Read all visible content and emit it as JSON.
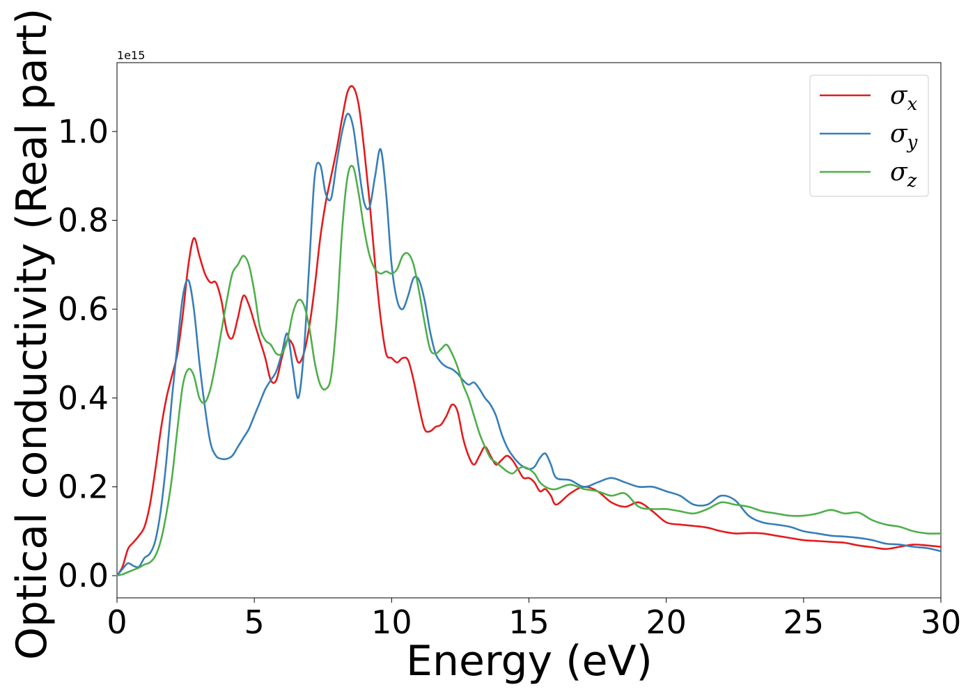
{
  "chart_data": {
    "type": "line",
    "xlabel": "Energy (eV)",
    "ylabel": "Optical conductivity (Real part)",
    "y_offset_label": "1e15",
    "xlim": [
      0,
      30
    ],
    "ylim": [
      -0.05,
      1.155
    ],
    "x_ticks": [
      0,
      5,
      10,
      15,
      20,
      25,
      30
    ],
    "y_ticks": [
      0.0,
      0.2,
      0.4,
      0.6,
      0.8,
      1.0
    ],
    "x_tick_labels": [
      "0",
      "5",
      "10",
      "15",
      "20",
      "25",
      "30"
    ],
    "y_tick_labels": [
      "0.0",
      "0.2",
      "0.4",
      "0.6",
      "0.8",
      "1.0"
    ],
    "grid": false,
    "legend_position": "top-right",
    "series": [
      {
        "name": "σx",
        "label_base": "σ",
        "label_sub": "x",
        "color": "#e41a1c",
        "x": [
          0,
          0.2,
          0.4,
          0.6,
          0.8,
          1.0,
          1.2,
          1.4,
          1.6,
          1.8,
          2.0,
          2.2,
          2.4,
          2.6,
          2.8,
          3.0,
          3.2,
          3.4,
          3.6,
          3.8,
          4.0,
          4.2,
          4.4,
          4.6,
          4.8,
          5.0,
          5.2,
          5.4,
          5.6,
          5.8,
          6.0,
          6.2,
          6.4,
          6.6,
          6.8,
          7.0,
          7.2,
          7.4,
          7.6,
          7.8,
          8.0,
          8.2,
          8.4,
          8.6,
          8.8,
          9.0,
          9.2,
          9.4,
          9.6,
          9.8,
          10.0,
          10.2,
          10.4,
          10.6,
          10.8,
          11.0,
          11.2,
          11.4,
          11.6,
          11.8,
          12.0,
          12.2,
          12.4,
          12.6,
          12.8,
          13.0,
          13.2,
          13.4,
          13.6,
          13.8,
          14.0,
          14.2,
          14.4,
          14.6,
          14.8,
          15.0,
          15.2,
          15.4,
          15.6,
          15.8,
          16.0,
          16.5,
          17.0,
          17.5,
          18.0,
          18.5,
          19.0,
          19.5,
          20.0,
          20.5,
          21.0,
          21.5,
          22.0,
          22.5,
          23.0,
          23.5,
          24.0,
          24.5,
          25.0,
          25.5,
          26.0,
          26.5,
          27.0,
          27.5,
          28.0,
          28.5,
          29.0,
          29.5,
          30.0
        ],
        "y": [
          0.0,
          0.02,
          0.06,
          0.075,
          0.09,
          0.11,
          0.16,
          0.24,
          0.33,
          0.4,
          0.45,
          0.5,
          0.59,
          0.7,
          0.76,
          0.72,
          0.68,
          0.66,
          0.66,
          0.62,
          0.55,
          0.535,
          0.58,
          0.63,
          0.61,
          0.57,
          0.53,
          0.49,
          0.44,
          0.44,
          0.49,
          0.53,
          0.52,
          0.48,
          0.5,
          0.56,
          0.65,
          0.76,
          0.84,
          0.9,
          0.96,
          1.03,
          1.09,
          1.1,
          1.06,
          0.96,
          0.84,
          0.7,
          0.58,
          0.5,
          0.49,
          0.48,
          0.49,
          0.485,
          0.44,
          0.38,
          0.33,
          0.325,
          0.335,
          0.34,
          0.36,
          0.385,
          0.37,
          0.31,
          0.27,
          0.25,
          0.27,
          0.29,
          0.27,
          0.25,
          0.26,
          0.27,
          0.26,
          0.24,
          0.22,
          0.22,
          0.21,
          0.19,
          0.195,
          0.18,
          0.16,
          0.185,
          0.2,
          0.19,
          0.165,
          0.155,
          0.165,
          0.145,
          0.12,
          0.115,
          0.112,
          0.108,
          0.1,
          0.095,
          0.096,
          0.095,
          0.09,
          0.085,
          0.08,
          0.078,
          0.076,
          0.074,
          0.068,
          0.064,
          0.06,
          0.065,
          0.07,
          0.068,
          0.065
        ],
        "x_note": "",
        "y_note": ""
      },
      {
        "name": "σy",
        "label_base": "σ",
        "label_sub": "y",
        "color": "#377eb8",
        "x": [
          0,
          0.2,
          0.4,
          0.6,
          0.8,
          1.0,
          1.2,
          1.4,
          1.6,
          1.8,
          2.0,
          2.2,
          2.4,
          2.6,
          2.8,
          3.0,
          3.2,
          3.4,
          3.6,
          3.8,
          4.0,
          4.2,
          4.4,
          4.6,
          4.8,
          5.0,
          5.2,
          5.4,
          5.6,
          5.8,
          6.0,
          6.2,
          6.4,
          6.6,
          6.8,
          7.0,
          7.2,
          7.4,
          7.6,
          7.8,
          8.0,
          8.2,
          8.4,
          8.6,
          8.8,
          9.0,
          9.2,
          9.4,
          9.6,
          9.8,
          10.0,
          10.2,
          10.4,
          10.6,
          10.8,
          11.0,
          11.2,
          11.4,
          11.6,
          11.8,
          12.0,
          12.2,
          12.4,
          12.6,
          12.8,
          13.0,
          13.2,
          13.4,
          13.6,
          13.8,
          14.0,
          14.2,
          14.4,
          14.6,
          14.8,
          15.0,
          15.2,
          15.4,
          15.6,
          15.8,
          16.0,
          16.5,
          17.0,
          17.5,
          18.0,
          18.5,
          19.0,
          19.5,
          20.0,
          20.5,
          21.0,
          21.5,
          22.0,
          22.5,
          23.0,
          23.5,
          24.0,
          24.5,
          25.0,
          25.5,
          26.0,
          26.5,
          27.0,
          27.5,
          28.0,
          28.5,
          29.0,
          29.5,
          30.0
        ],
        "y": [
          0.0,
          0.015,
          0.028,
          0.022,
          0.02,
          0.04,
          0.05,
          0.08,
          0.15,
          0.26,
          0.4,
          0.52,
          0.63,
          0.665,
          0.6,
          0.48,
          0.38,
          0.3,
          0.27,
          0.263,
          0.263,
          0.27,
          0.29,
          0.31,
          0.33,
          0.36,
          0.39,
          0.42,
          0.44,
          0.46,
          0.5,
          0.545,
          0.47,
          0.4,
          0.5,
          0.7,
          0.9,
          0.925,
          0.86,
          0.85,
          0.93,
          1.0,
          1.04,
          1.01,
          0.92,
          0.84,
          0.83,
          0.9,
          0.96,
          0.86,
          0.7,
          0.62,
          0.6,
          0.63,
          0.67,
          0.665,
          0.62,
          0.55,
          0.5,
          0.48,
          0.47,
          0.465,
          0.455,
          0.44,
          0.43,
          0.435,
          0.42,
          0.4,
          0.385,
          0.36,
          0.32,
          0.29,
          0.27,
          0.255,
          0.245,
          0.24,
          0.245,
          0.265,
          0.275,
          0.25,
          0.22,
          0.215,
          0.2,
          0.21,
          0.22,
          0.21,
          0.2,
          0.2,
          0.19,
          0.18,
          0.16,
          0.16,
          0.18,
          0.17,
          0.135,
          0.12,
          0.115,
          0.11,
          0.1,
          0.095,
          0.09,
          0.088,
          0.085,
          0.08,
          0.072,
          0.07,
          0.065,
          0.062,
          0.055
        ],
        "x_note": "",
        "y_note": ""
      },
      {
        "name": "σz",
        "label_base": "σ",
        "label_sub": "z",
        "color": "#4daf4a",
        "x": [
          0,
          0.2,
          0.4,
          0.6,
          0.8,
          1.0,
          1.2,
          1.4,
          1.6,
          1.8,
          2.0,
          2.2,
          2.4,
          2.6,
          2.8,
          3.0,
          3.2,
          3.4,
          3.6,
          3.8,
          4.0,
          4.2,
          4.4,
          4.6,
          4.8,
          5.0,
          5.2,
          5.4,
          5.6,
          5.8,
          6.0,
          6.2,
          6.4,
          6.6,
          6.8,
          7.0,
          7.2,
          7.4,
          7.6,
          7.8,
          8.0,
          8.2,
          8.4,
          8.6,
          8.8,
          9.0,
          9.2,
          9.4,
          9.6,
          9.8,
          10.0,
          10.2,
          10.4,
          10.6,
          10.8,
          11.0,
          11.2,
          11.4,
          11.6,
          11.8,
          12.0,
          12.2,
          12.4,
          12.6,
          12.8,
          13.0,
          13.2,
          13.4,
          13.6,
          13.8,
          14.0,
          14.2,
          14.4,
          14.6,
          14.8,
          15.0,
          15.2,
          15.4,
          15.6,
          15.8,
          16.0,
          16.5,
          17.0,
          17.5,
          18.0,
          18.5,
          19.0,
          19.5,
          20.0,
          20.5,
          21.0,
          21.5,
          22.0,
          22.5,
          23.0,
          23.5,
          24.0,
          24.5,
          25.0,
          25.5,
          26.0,
          26.5,
          27.0,
          27.5,
          28.0,
          28.5,
          29.0,
          29.5,
          30.0
        ],
        "y": [
          0.0,
          0.003,
          0.008,
          0.013,
          0.018,
          0.025,
          0.03,
          0.045,
          0.08,
          0.14,
          0.22,
          0.33,
          0.43,
          0.465,
          0.45,
          0.4,
          0.39,
          0.42,
          0.48,
          0.55,
          0.62,
          0.68,
          0.7,
          0.72,
          0.7,
          0.64,
          0.56,
          0.53,
          0.52,
          0.5,
          0.5,
          0.53,
          0.59,
          0.62,
          0.61,
          0.56,
          0.48,
          0.43,
          0.42,
          0.45,
          0.58,
          0.78,
          0.9,
          0.92,
          0.86,
          0.78,
          0.72,
          0.69,
          0.68,
          0.685,
          0.68,
          0.69,
          0.72,
          0.725,
          0.7,
          0.64,
          0.57,
          0.51,
          0.5,
          0.51,
          0.52,
          0.5,
          0.47,
          0.43,
          0.4,
          0.36,
          0.32,
          0.29,
          0.265,
          0.255,
          0.245,
          0.235,
          0.23,
          0.24,
          0.245,
          0.24,
          0.23,
          0.21,
          0.2,
          0.195,
          0.195,
          0.205,
          0.195,
          0.19,
          0.18,
          0.185,
          0.155,
          0.15,
          0.15,
          0.145,
          0.14,
          0.15,
          0.165,
          0.16,
          0.155,
          0.145,
          0.14,
          0.135,
          0.135,
          0.14,
          0.148,
          0.14,
          0.142,
          0.125,
          0.115,
          0.11,
          0.1,
          0.095,
          0.095
        ],
        "x_note": "",
        "y_note": ""
      }
    ]
  }
}
